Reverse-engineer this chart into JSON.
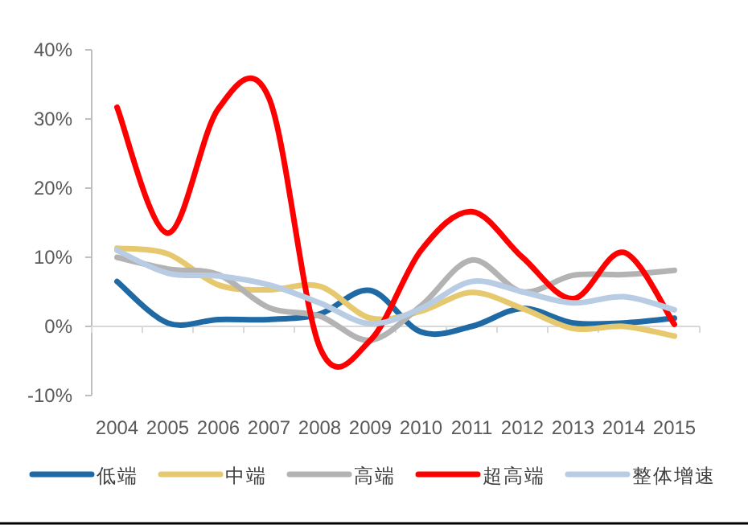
{
  "chart_data": {
    "type": "line",
    "categories": [
      "2004",
      "2005",
      "2006",
      "2007",
      "2008",
      "2009",
      "2010",
      "2011",
      "2012",
      "2013",
      "2014",
      "2015"
    ],
    "ylim": [
      -10,
      40
    ],
    "yticks": [
      {
        "value": -10,
        "label": "-10%"
      },
      {
        "value": 0,
        "label": "0%"
      },
      {
        "value": 10,
        "label": "10%"
      },
      {
        "value": 20,
        "label": "20%"
      },
      {
        "value": 30,
        "label": "30%"
      },
      {
        "value": 40,
        "label": "40%"
      }
    ],
    "legend": "bottom",
    "series": [
      {
        "name": "低端",
        "color": "#1f6aa5",
        "values": [
          6.5,
          0.5,
          1.0,
          1.0,
          1.8,
          5.2,
          -0.8,
          0,
          2.6,
          0.5,
          0.5,
          1.2
        ]
      },
      {
        "name": "中端",
        "color": "#e6c86e",
        "values": [
          11.3,
          10.5,
          6,
          5.3,
          5.8,
          1.2,
          2.2,
          4.9,
          2.6,
          -0.3,
          0,
          -1.4
        ]
      },
      {
        "name": "高端",
        "color": "#b3b3b3",
        "values": [
          10,
          8.3,
          7.5,
          2.7,
          1.5,
          -2,
          3,
          9.6,
          5,
          7.4,
          7.5,
          8.1
        ]
      },
      {
        "name": "超高端",
        "color": "#ff0000",
        "values": [
          31.7,
          13.5,
          31.5,
          33,
          -3,
          -2,
          11,
          16.6,
          10,
          4,
          10.7,
          0.3
        ]
      },
      {
        "name": "整体增速",
        "color": "#b8cce4",
        "values": [
          11,
          7.7,
          7.3,
          6,
          3.4,
          0.4,
          2.6,
          6.5,
          5,
          3.4,
          4.3,
          2.4
        ]
      }
    ]
  }
}
